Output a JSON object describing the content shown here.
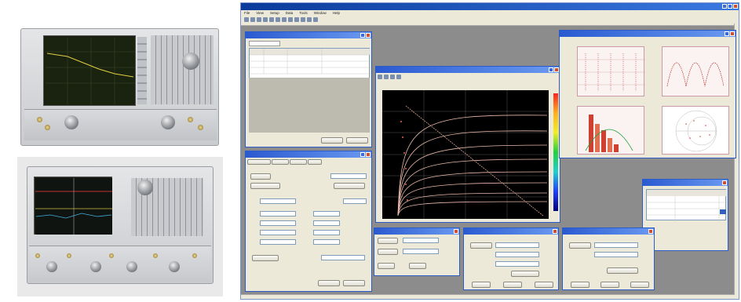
{
  "app": {
    "title": "",
    "menu": [
      "File",
      "View",
      "Setup",
      "Data",
      "Tools",
      "Window",
      "Help"
    ]
  },
  "windows": {
    "list": {
      "title": "",
      "tab_label": "",
      "button_label": ""
    },
    "setup": {
      "title": ""
    },
    "plot": {
      "title": ""
    },
    "multi": {
      "title": ""
    },
    "table": {
      "title": ""
    },
    "small1": {
      "title": ""
    },
    "small2": {
      "title": ""
    },
    "small3": {
      "title": ""
    }
  },
  "colors": {
    "titlebar": "#1f4fc0",
    "trace": "#e0b0a0",
    "plot_bg": "#000000",
    "panel": "#ece9d8"
  }
}
